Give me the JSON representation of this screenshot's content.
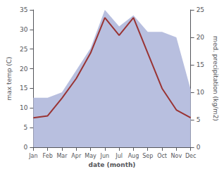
{
  "chart_data": {
    "type": "line",
    "categories": [
      "Jan",
      "Feb",
      "Mar",
      "Apr",
      "May",
      "Jun",
      "Jul",
      "Aug",
      "Sep",
      "Oct",
      "Nov",
      "Dec"
    ],
    "xlabel": "date (month)",
    "ylabel": "max temp (C)",
    "y2label": "med. precipitation (kg/m2)",
    "series": [
      {
        "type": "area",
        "axis": "y2",
        "color": "#b8bfdf",
        "values": [
          9.0,
          9.0,
          10.0,
          14.0,
          18.0,
          25.0,
          22.0,
          24.0,
          21.0,
          21.0,
          20.0,
          10.5
        ]
      },
      {
        "type": "line",
        "color": "#993333",
        "values": [
          7.5,
          8.0,
          12.5,
          17.5,
          24.0,
          33.0,
          28.5,
          33.0,
          24.0,
          15.0,
          9.5,
          7.5
        ]
      }
    ],
    "ylim": [
      0,
      35
    ],
    "yticks": [
      0,
      5,
      10,
      15,
      20,
      25,
      30,
      35
    ],
    "y2lim": [
      0,
      25
    ],
    "y2ticks": [
      0,
      5,
      10,
      15,
      20,
      25
    ],
    "grid": false
  }
}
